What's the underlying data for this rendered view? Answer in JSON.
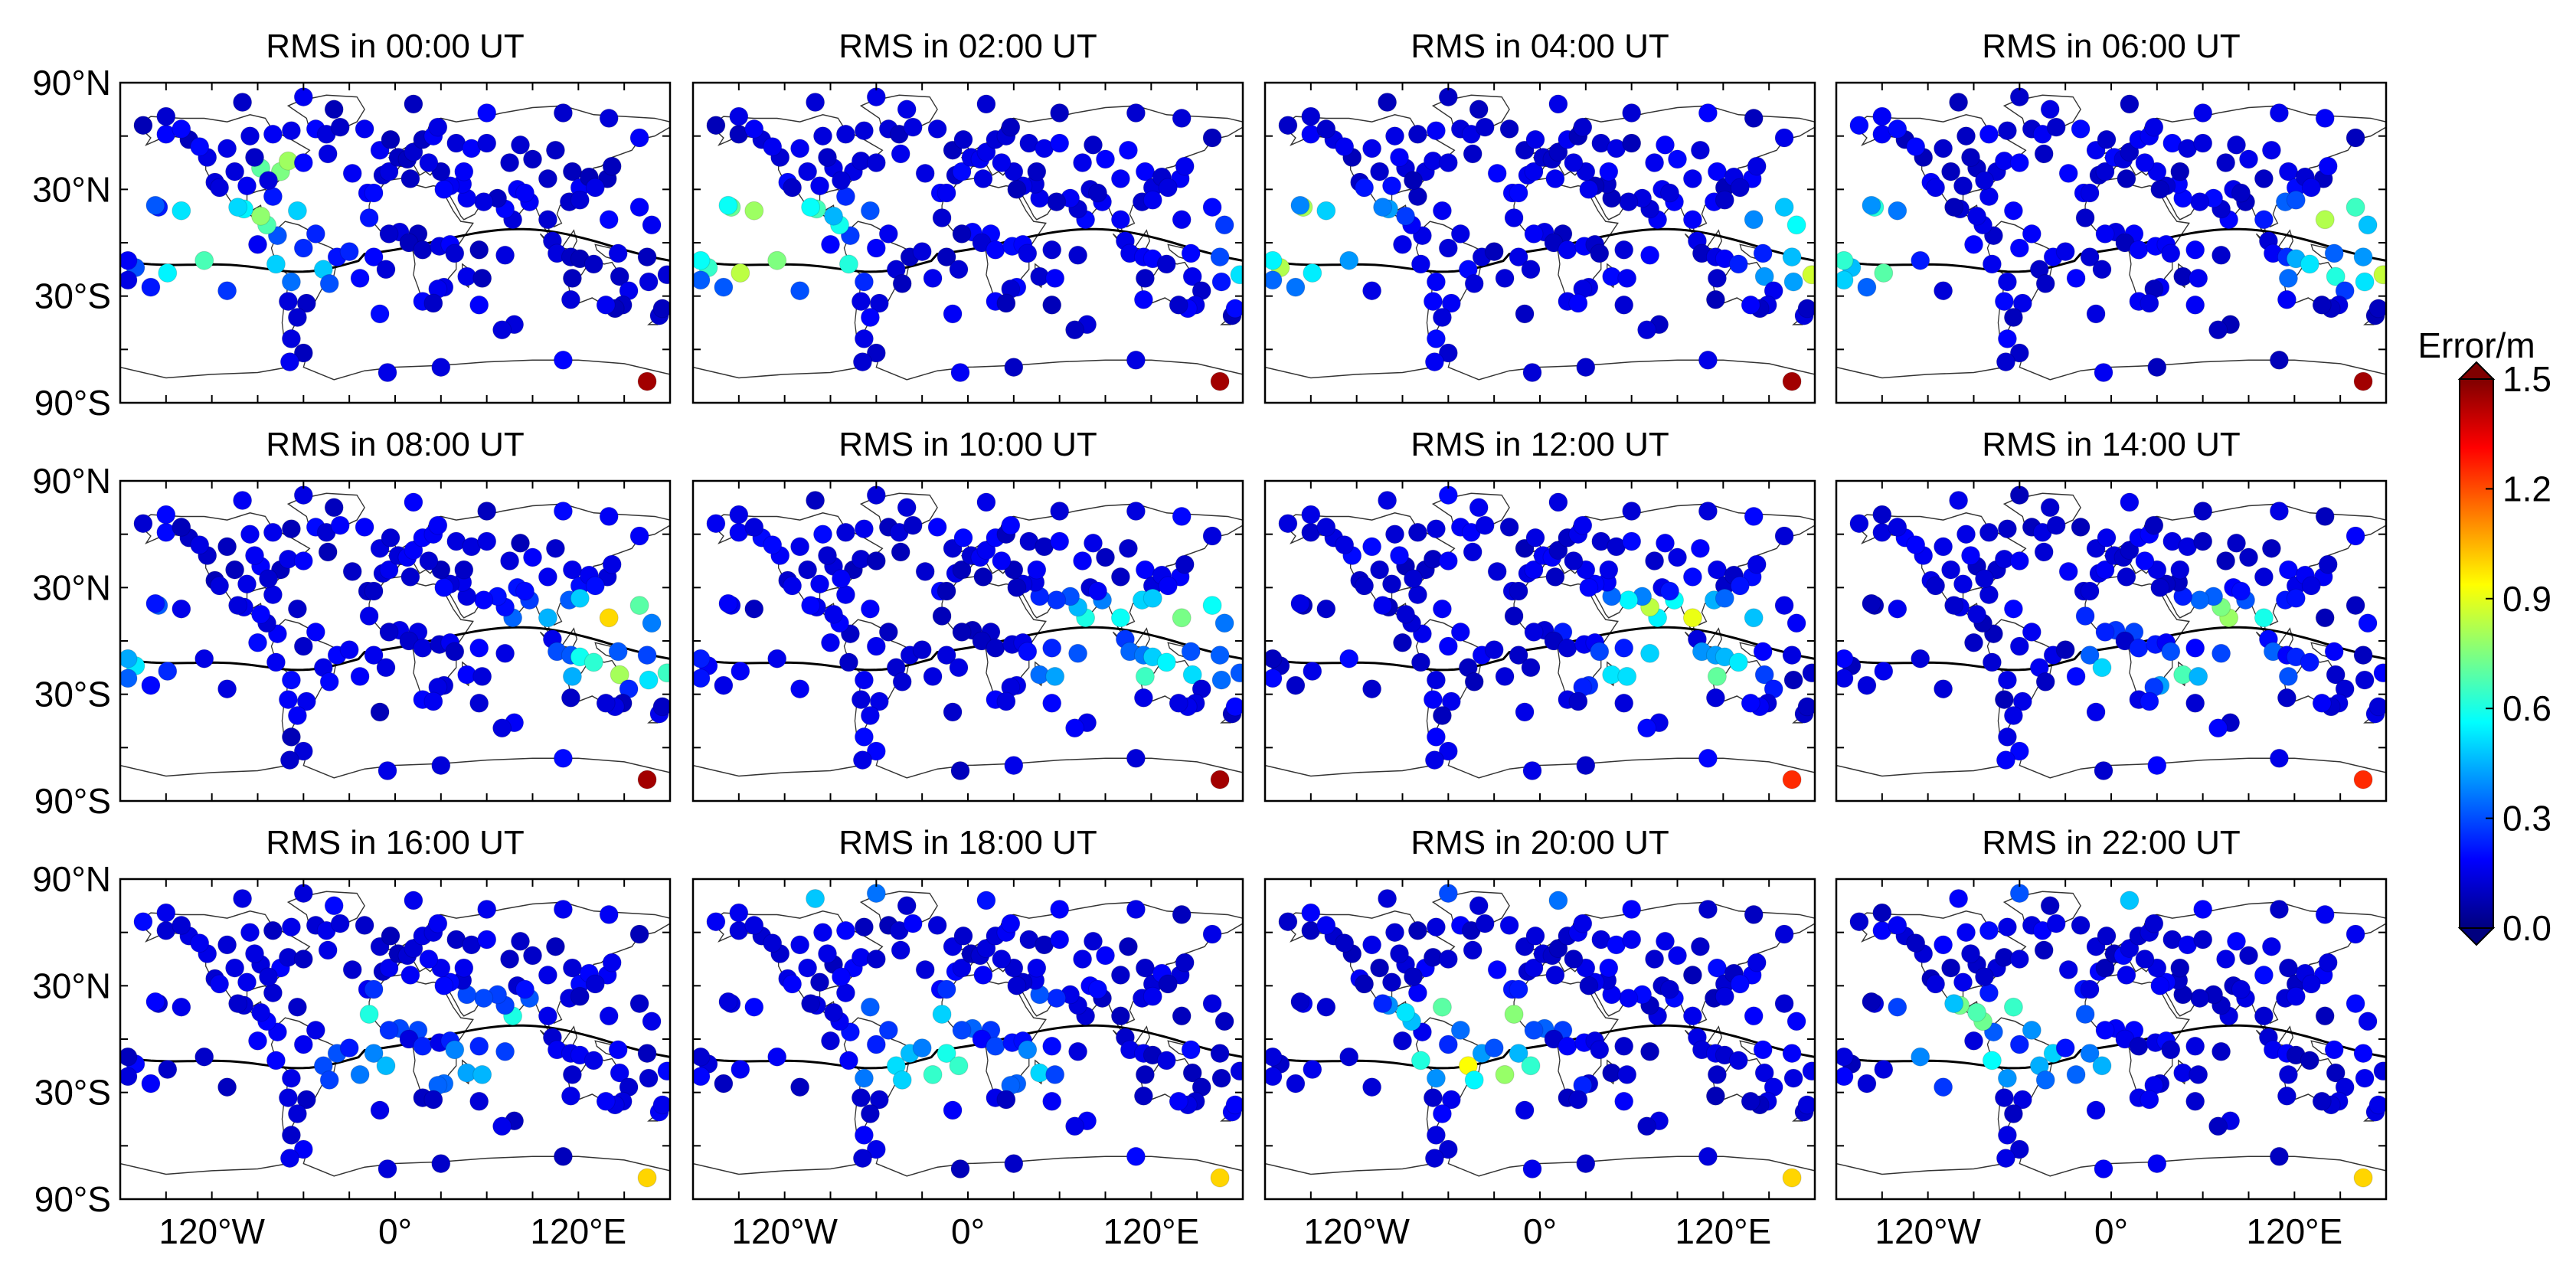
{
  "figure": {
    "type": "scatter-map-grid",
    "colorbar": {
      "label": "Error/m",
      "ticks": [
        "1.5",
        "1.2",
        "0.9",
        "0.6",
        "0.3",
        "0.0"
      ],
      "tick_values": [
        1.5,
        1.2,
        0.9,
        0.6,
        0.3,
        0.0
      ],
      "range": [
        0.0,
        1.5
      ],
      "colormap": "jet"
    },
    "y_axis_ticks": [
      "90°N",
      "30°N",
      "30°S",
      "90°S"
    ],
    "y_axis_tick_values": [
      90,
      30,
      -30,
      -90
    ],
    "x_axis_ticks": [
      "120°W",
      "0°",
      "120°E"
    ],
    "x_axis_tick_values": [
      -120,
      0,
      120
    ],
    "lon_range": [
      -180,
      180
    ],
    "lat_range": [
      -90,
      90
    ]
  },
  "chart_data": [
    {
      "type": "scatter",
      "title": "RMS in 00:00 UT",
      "hour": 0
    },
    {
      "type": "scatter",
      "title": "RMS in 02:00 UT",
      "hour": 2
    },
    {
      "type": "scatter",
      "title": "RMS in 04:00 UT",
      "hour": 4
    },
    {
      "type": "scatter",
      "title": "RMS in 06:00 UT",
      "hour": 6
    },
    {
      "type": "scatter",
      "title": "RMS in 08:00 UT",
      "hour": 8
    },
    {
      "type": "scatter",
      "title": "RMS in 10:00 UT",
      "hour": 10
    },
    {
      "type": "scatter",
      "title": "RMS in 12:00 UT",
      "hour": 12
    },
    {
      "type": "scatter",
      "title": "RMS in 14:00 UT",
      "hour": 14
    },
    {
      "type": "scatter",
      "title": "RMS in 16:00 UT",
      "hour": 16
    },
    {
      "type": "scatter",
      "title": "RMS in 18:00 UT",
      "hour": 18
    },
    {
      "type": "scatter",
      "title": "RMS in 20:00 UT",
      "hour": 20
    },
    {
      "type": "scatter",
      "title": "RMS in 22:00 UT",
      "hour": 22
    }
  ],
  "stations": [
    [
      -165,
      66
    ],
    [
      -150,
      61
    ],
    [
      -135,
      58
    ],
    [
      -123,
      48
    ],
    [
      -118,
      34
    ],
    [
      -105,
      40
    ],
    [
      -97,
      32
    ],
    [
      -88,
      42
    ],
    [
      -80,
      26
    ],
    [
      -75,
      40
    ],
    [
      -70,
      46
    ],
    [
      -64,
      18
    ],
    [
      -155,
      20
    ],
    [
      -157,
      21
    ],
    [
      -170,
      -14
    ],
    [
      -149,
      -17
    ],
    [
      -110,
      -27
    ],
    [
      -90,
      -1
    ],
    [
      -78,
      -12
    ],
    [
      -70,
      -33
    ],
    [
      -68,
      -22
    ],
    [
      -60,
      -3
    ],
    [
      -47,
      -15
    ],
    [
      -43,
      -23
    ],
    [
      -58,
      -34
    ],
    [
      -64,
      -42
    ],
    [
      -68,
      -54
    ],
    [
      -38,
      -8
    ],
    [
      -52,
      5
    ],
    [
      -77,
      4
    ],
    [
      -99,
      19
    ],
    [
      -84,
      10
    ],
    [
      -115,
      31
    ],
    [
      -83,
      35
    ],
    [
      -92,
      48
    ],
    [
      -110,
      53
    ],
    [
      -128,
      54
    ],
    [
      -140,
      64
    ],
    [
      -95,
      60
    ],
    [
      -80,
      61
    ],
    [
      -68,
      63
    ],
    [
      -52,
      64
    ],
    [
      -45,
      61
    ],
    [
      -36,
      65
    ],
    [
      -20,
      64
    ],
    [
      -18,
      28
    ],
    [
      -8,
      38
    ],
    [
      -4,
      40
    ],
    [
      2,
      48
    ],
    [
      8,
      47
    ],
    [
      12,
      51
    ],
    [
      18,
      58
    ],
    [
      25,
      60
    ],
    [
      28,
      65
    ],
    [
      40,
      56
    ],
    [
      50,
      53
    ],
    [
      60,
      56
    ],
    [
      75,
      45
    ],
    [
      82,
      55
    ],
    [
      90,
      47
    ],
    [
      105,
      52
    ],
    [
      116,
      40
    ],
    [
      121,
      31
    ],
    [
      127,
      37
    ],
    [
      139,
      36
    ],
    [
      142,
      43
    ],
    [
      131,
      31
    ],
    [
      114,
      23
    ],
    [
      121,
      24
    ],
    [
      100,
      13
    ],
    [
      103,
      1
    ],
    [
      106,
      -6
    ],
    [
      115,
      -8
    ],
    [
      121,
      -9
    ],
    [
      130,
      -12
    ],
    [
      146,
      -6
    ],
    [
      147,
      -19
    ],
    [
      153,
      -27
    ],
    [
      149,
      -35
    ],
    [
      144,
      -37
    ],
    [
      138,
      -35
    ],
    [
      115,
      -32
    ],
    [
      116,
      -20
    ],
    [
      173,
      -41
    ],
    [
      175,
      -37
    ],
    [
      178,
      -18
    ],
    [
      166,
      -22
    ],
    [
      -175,
      -21
    ],
    [
      77,
      13
    ],
    [
      72,
      19
    ],
    [
      88,
      23
    ],
    [
      67,
      25
    ],
    [
      58,
      23
    ],
    [
      47,
      25
    ],
    [
      44,
      33
    ],
    [
      36,
      32
    ],
    [
      32,
      30
    ],
    [
      30,
      40
    ],
    [
      15,
      5
    ],
    [
      3,
      6
    ],
    [
      -4,
      5
    ],
    [
      -17,
      14
    ],
    [
      9,
      0
    ],
    [
      18,
      -4
    ],
    [
      29,
      -2
    ],
    [
      36,
      -1
    ],
    [
      39,
      -6
    ],
    [
      32,
      -25
    ],
    [
      28,
      -26
    ],
    [
      18,
      -33
    ],
    [
      25,
      -34
    ],
    [
      47,
      -19
    ],
    [
      57,
      -20
    ],
    [
      55,
      -4
    ],
    [
      72,
      -7
    ],
    [
      78,
      -46
    ],
    [
      70,
      -49
    ],
    [
      -14,
      -8
    ],
    [
      -6,
      -15
    ],
    [
      -10,
      -40
    ],
    [
      -23,
      -20
    ],
    [
      -28,
      39
    ],
    [
      -14,
      28
    ],
    [
      12,
      78
    ],
    [
      -40,
      75
    ],
    [
      -60,
      82
    ],
    [
      -150,
      71
    ],
    [
      -100,
      79
    ],
    [
      60,
      73
    ],
    [
      110,
      73
    ],
    [
      140,
      70
    ],
    [
      160,
      59
    ],
    [
      -10,
      52
    ],
    [
      -3,
      58
    ],
    [
      22,
      45
    ],
    [
      45,
      40
    ],
    [
      10,
      36
    ],
    [
      80,
      30
    ],
    [
      85,
      28
    ],
    [
      100,
      36
    ],
    [
      -160,
      -25
    ],
    [
      -125,
      -10
    ],
    [
      -30,
      -5
    ],
    [
      55,
      -35
    ],
    [
      165,
      -8
    ],
    [
      168,
      10
    ],
    [
      160,
      20
    ],
    [
      140,
      13
    ],
    [
      -5,
      -73
    ],
    [
      30,
      -70
    ],
    [
      110,
      -66
    ],
    [
      165,
      -78
    ],
    [
      -60,
      -62
    ],
    [
      -69,
      -67
    ],
    [
      -175,
      -10
    ],
    [
      -140,
      18
    ],
    [
      -60,
      45
    ],
    [
      -44,
      50
    ],
    [
      -88,
      15
    ],
    [
      -103,
      20
    ]
  ]
}
